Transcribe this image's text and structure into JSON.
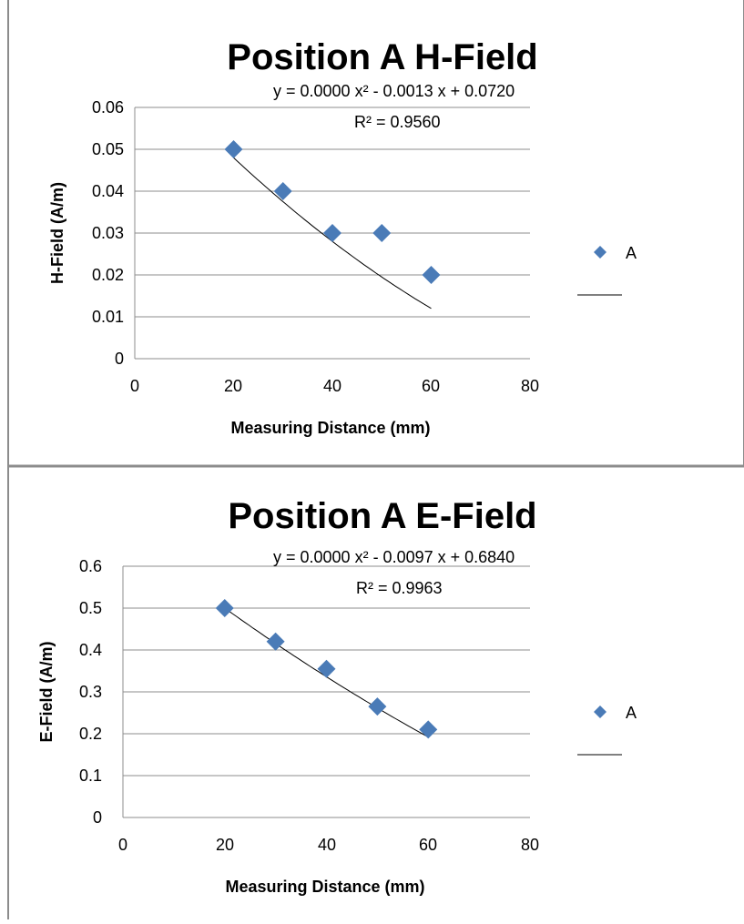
{
  "chart_data": [
    {
      "type": "scatter",
      "title": "Position A H-Field",
      "xlabel": "Measuring Distance (mm)",
      "ylabel": "H-Field (A/m)",
      "xlim": [
        0,
        80
      ],
      "ylim": [
        0,
        0.06
      ],
      "x_ticks": [
        "0",
        "20",
        "40",
        "60",
        "80"
      ],
      "y_ticks": [
        "0",
        "0.01",
        "0.02",
        "0.03",
        "0.04",
        "0.05",
        "0.06"
      ],
      "grid": true,
      "legend_position": "right",
      "series": [
        {
          "name": "A",
          "x": [
            20,
            30,
            40,
            50,
            60
          ],
          "y": [
            0.05,
            0.04,
            0.03,
            0.03,
            0.02
          ],
          "color": "#4a7bb7",
          "marker": "diamond"
        }
      ],
      "trendline": {
        "type": "polynomial",
        "color": "#000000",
        "coefficients": [
          0.072,
          -0.0013,
          5e-06
        ],
        "equation": "y = 0.0000 x² - 0.0013 x + 0.0720",
        "r_squared": "R² = 0.9560"
      }
    },
    {
      "type": "scatter",
      "title": "Position A E-Field",
      "xlabel": "Measuring Distance (mm)",
      "ylabel": "E-Field (A/m)",
      "xlim": [
        0,
        80
      ],
      "ylim": [
        0,
        0.6
      ],
      "x_ticks": [
        "0",
        "20",
        "40",
        "60",
        "80"
      ],
      "y_ticks": [
        "0",
        "0.1",
        "0.2",
        "0.3",
        "0.4",
        "0.5",
        "0.6"
      ],
      "grid": true,
      "legend_position": "right",
      "series": [
        {
          "name": "A",
          "x": [
            20,
            30,
            40,
            50,
            60
          ],
          "y": [
            0.5,
            0.42,
            0.355,
            0.265,
            0.21
          ],
          "color": "#4a7bb7",
          "marker": "diamond"
        }
      ],
      "trendline": {
        "type": "polynomial",
        "color": "#000000",
        "coefficients": [
          0.684,
          -0.0097,
          2.5e-05
        ],
        "equation": "y = 0.0000 x² - 0.0097 x + 0.6840",
        "r_squared": "R² = 0.9963"
      }
    }
  ]
}
